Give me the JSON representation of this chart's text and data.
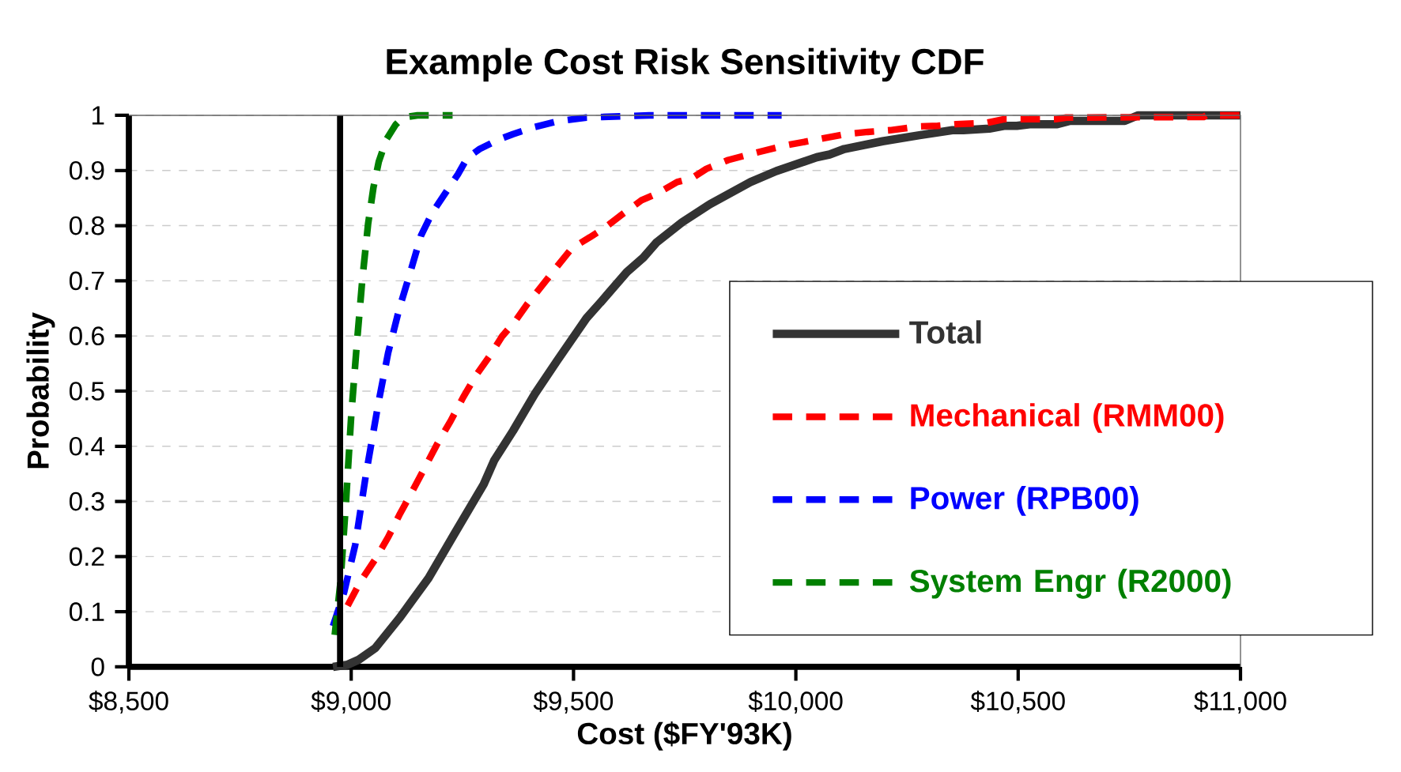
{
  "chart_data": {
    "type": "line",
    "title": "Example Cost Risk Sensitivity CDF",
    "xlabel": "Cost ($FY'93K)",
    "ylabel": "Probability",
    "xlim": [
      8500,
      11000
    ],
    "ylim": [
      0,
      1
    ],
    "xticks": [
      {
        "value": 8500,
        "label": "$8,500"
      },
      {
        "value": 9000,
        "label": "$9,000"
      },
      {
        "value": 9500,
        "label": "$9,500"
      },
      {
        "value": 10000,
        "label": "$10,000"
      },
      {
        "value": 10500,
        "label": "$10,500"
      },
      {
        "value": 11000,
        "label": "$11,000"
      }
    ],
    "yticks": [
      0,
      0.1,
      0.2,
      0.3,
      0.4,
      0.5,
      0.6,
      0.7,
      0.8,
      0.9,
      1
    ],
    "grid": "y",
    "legend": "right",
    "marker": "none",
    "ref_lines": [
      {
        "axis": "x",
        "value": 8975,
        "color": "#000000",
        "line_style": "solid"
      }
    ],
    "series": [
      {
        "name": "Total",
        "color": "#333333",
        "line_style": "solid",
        "x": [
          8959,
          8992,
          9017,
          9054,
          9108,
          9174,
          9232,
          9298,
          9322,
          9364,
          9413,
          9463,
          9529,
          9562,
          9620,
          9657,
          9686,
          9744,
          9807,
          9898,
          9956,
          10047,
          10076,
          10109,
          10195,
          10278,
          10352,
          10377,
          10435,
          10468,
          10497,
          10526,
          10588,
          10617,
          10740,
          10770,
          11000
        ],
        "values": [
          0,
          0.004,
          0.013,
          0.034,
          0.088,
          0.161,
          0.241,
          0.331,
          0.375,
          0.428,
          0.495,
          0.555,
          0.632,
          0.662,
          0.716,
          0.742,
          0.769,
          0.806,
          0.839,
          0.879,
          0.899,
          0.924,
          0.929,
          0.939,
          0.953,
          0.964,
          0.973,
          0.973,
          0.976,
          0.981,
          0.981,
          0.984,
          0.984,
          0.99,
          0.99,
          1,
          1
        ]
      },
      {
        "name": "Mechanical (RMM00)",
        "color": "#ff0000",
        "line_style": "dashed",
        "x": [
          8992,
          9021,
          9054,
          9083,
          9108,
          9137,
          9166,
          9194,
          9223,
          9252,
          9281,
          9310,
          9339,
          9368,
          9397,
          9430,
          9459,
          9496,
          9537,
          9570,
          9612,
          9653,
          9690,
          9733,
          9766,
          9799,
          9848,
          9914,
          9980,
          10047,
          10113,
          10162,
          10212,
          10278,
          10319,
          10360,
          10427,
          10468,
          10584,
          10608,
          10917,
          10923,
          11000
        ],
        "values": [
          0.111,
          0.155,
          0.195,
          0.235,
          0.275,
          0.318,
          0.362,
          0.405,
          0.445,
          0.489,
          0.529,
          0.562,
          0.599,
          0.626,
          0.659,
          0.692,
          0.722,
          0.759,
          0.779,
          0.796,
          0.822,
          0.846,
          0.859,
          0.879,
          0.886,
          0.903,
          0.919,
          0.933,
          0.946,
          0.956,
          0.966,
          0.97,
          0.973,
          0.98,
          0.981,
          0.984,
          0.986,
          0.993,
          0.993,
          0.996,
          0.997,
          1,
          1
        ]
      },
      {
        "name": "Power (RPB00)",
        "color": "#0000ff",
        "line_style": "dashed",
        "x": [
          8959,
          8984,
          9009,
          9033,
          9062,
          9083,
          9108,
          9133,
          9157,
          9182,
          9215,
          9240,
          9261,
          9289,
          9331,
          9364,
          9413,
          9463,
          9529,
          9670,
          9968
        ],
        "values": [
          0.074,
          0.135,
          0.221,
          0.348,
          0.482,
          0.569,
          0.649,
          0.716,
          0.782,
          0.823,
          0.863,
          0.893,
          0.923,
          0.939,
          0.956,
          0.966,
          0.979,
          0.989,
          0.996,
          1,
          1
        ]
      },
      {
        "name": "System  Engr (R2000)",
        "color": "#008000",
        "line_style": "dashed",
        "x": [
          8963,
          8976,
          8988,
          9000,
          9013,
          9025,
          9038,
          9050,
          9062,
          9079,
          9100,
          9116,
          9149,
          9228
        ],
        "values": [
          0.058,
          0.155,
          0.295,
          0.455,
          0.589,
          0.702,
          0.803,
          0.869,
          0.916,
          0.956,
          0.983,
          0.996,
          1,
          1
        ]
      }
    ]
  }
}
